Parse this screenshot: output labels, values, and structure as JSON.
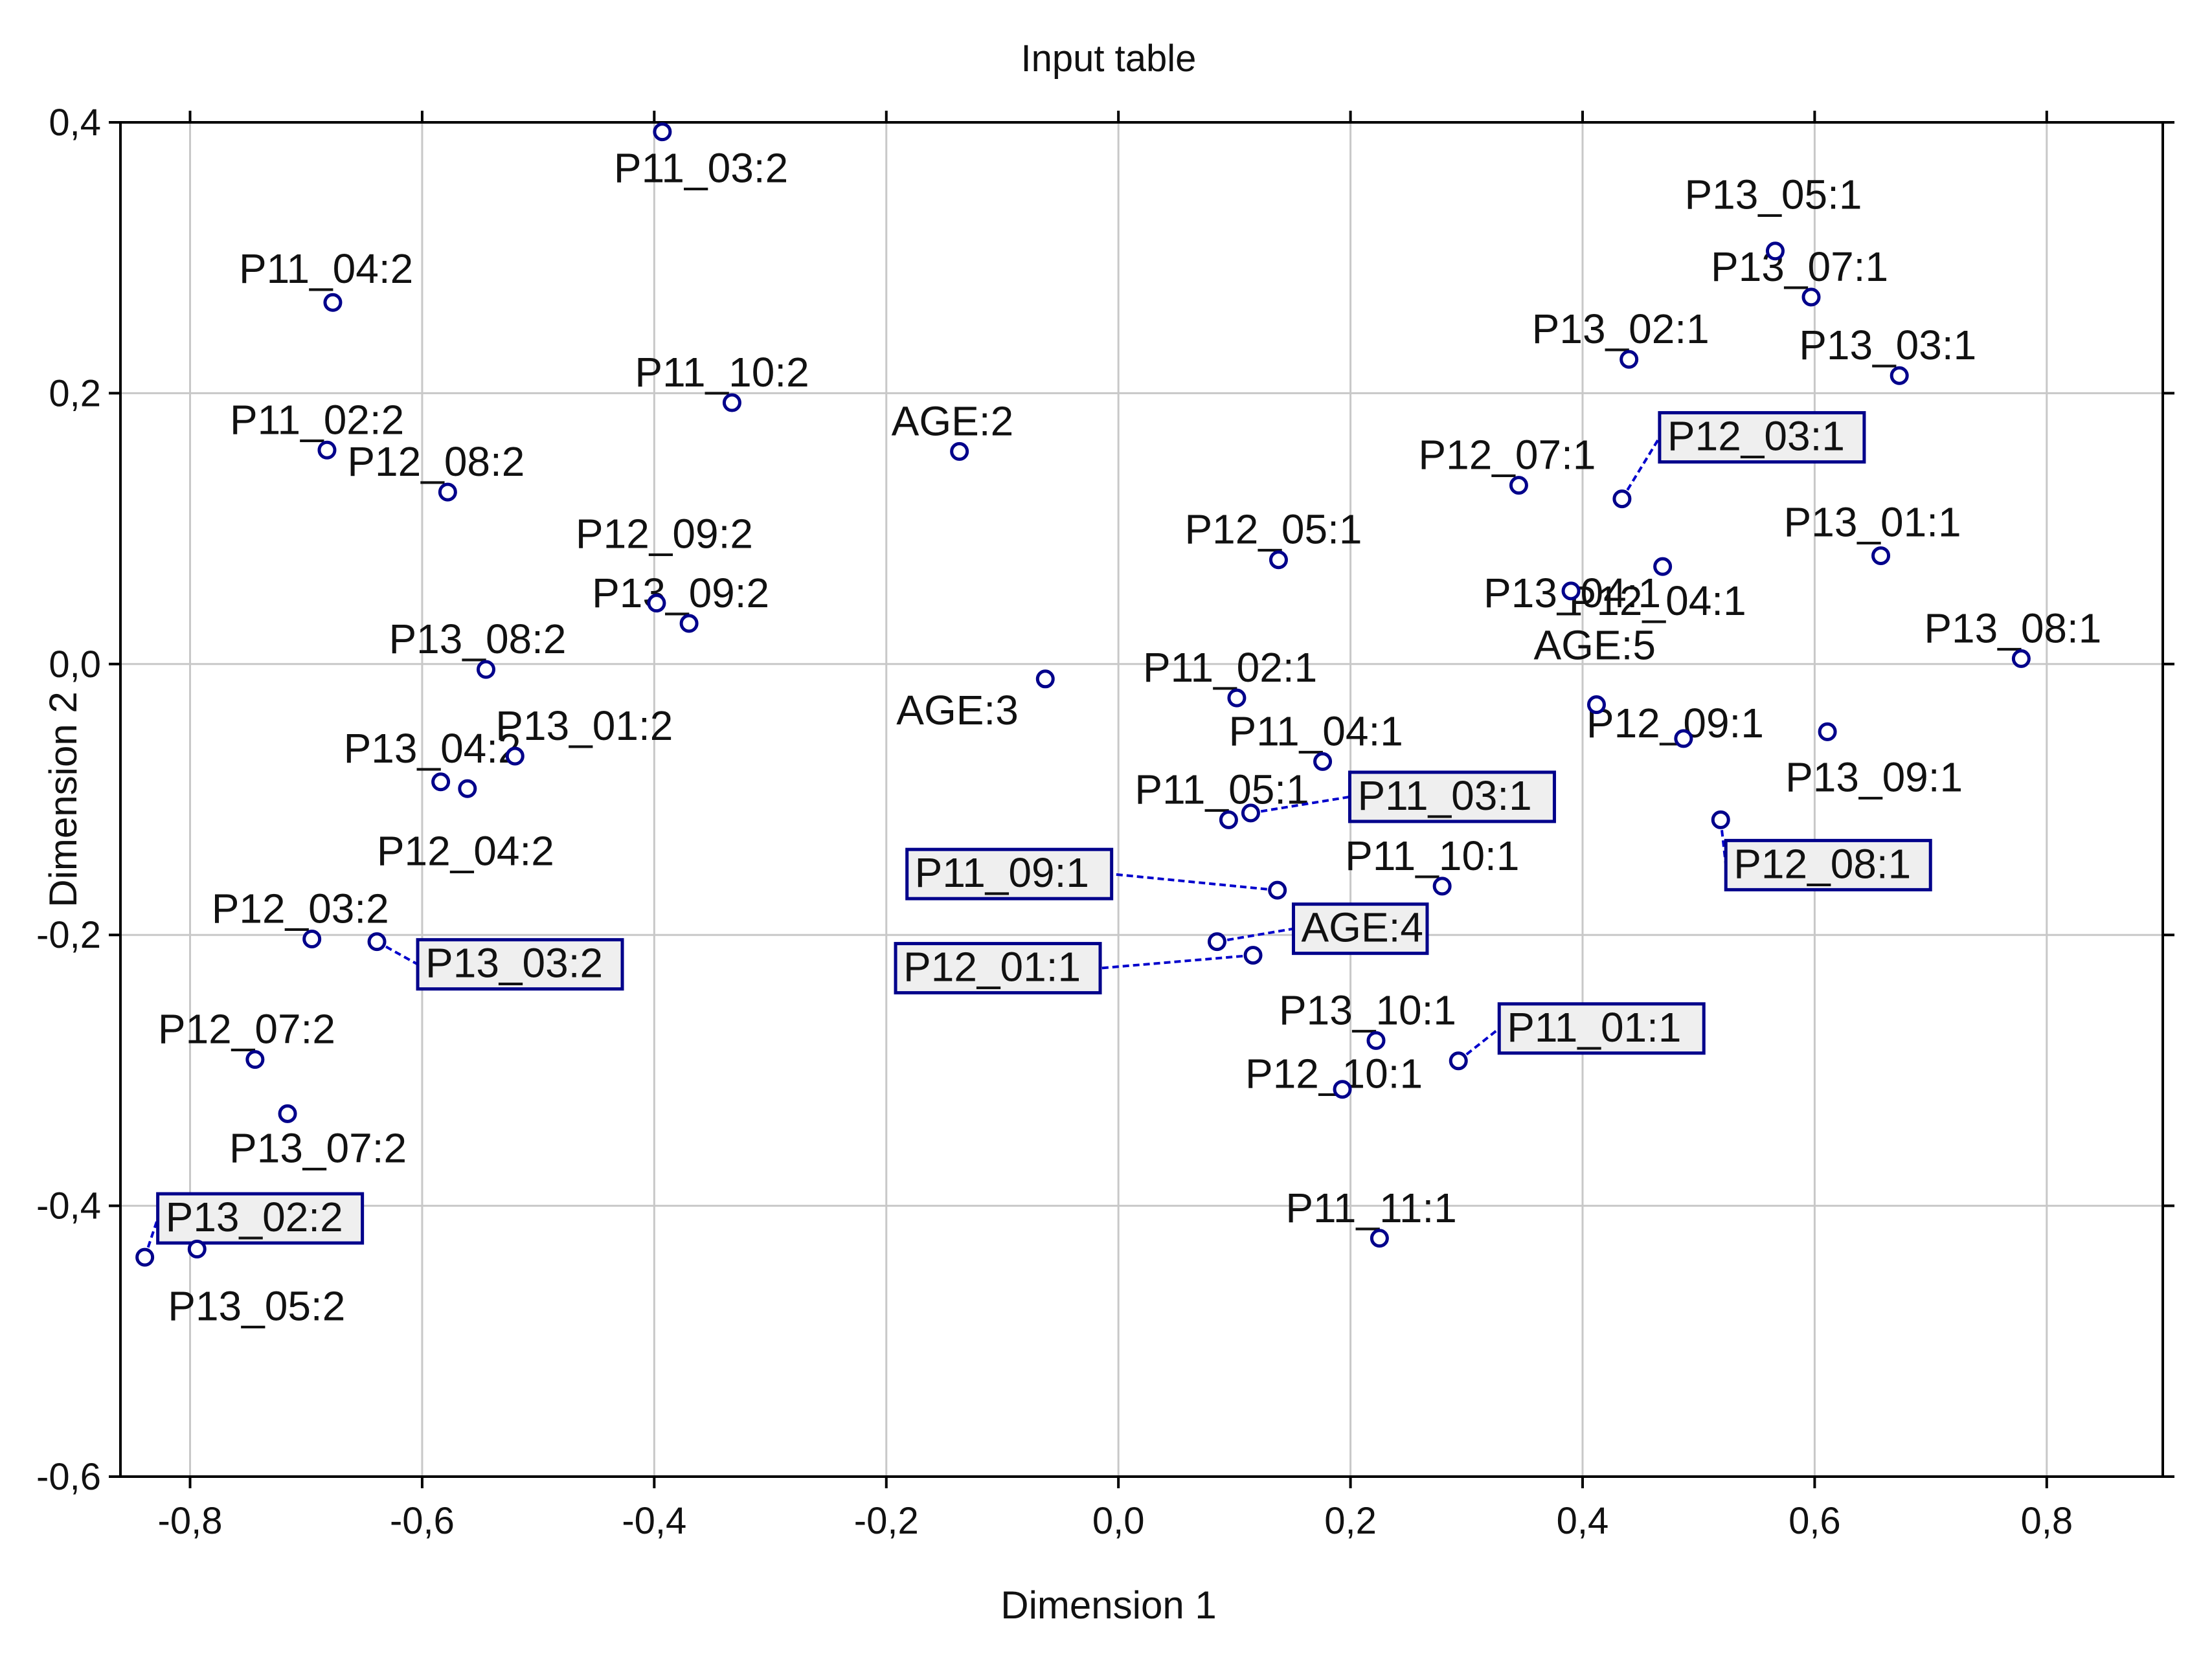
{
  "chart_data": {
    "type": "scatter",
    "title": "Input table",
    "xlabel": "Dimension 1",
    "ylabel": "Dimension 2",
    "xlim": [
      -0.86,
      0.9
    ],
    "ylim": [
      -0.6,
      0.4
    ],
    "xticks": [
      -0.8,
      -0.6,
      -0.4,
      -0.2,
      0.0,
      0.2,
      0.4,
      0.6,
      0.8
    ],
    "xtick_labels": [
      "-0,8",
      "-0,6",
      "-0,4",
      "-0,2",
      "0,0",
      "0,2",
      "0,4",
      "0,6",
      "0,8"
    ],
    "yticks": [
      -0.6,
      -0.4,
      -0.2,
      0.0,
      0.2,
      0.4
    ],
    "ytick_labels": [
      "-0,6",
      "-0,4",
      "-0,2",
      "0,0",
      "0,2",
      "0,4"
    ],
    "grid": true,
    "points": [
      {
        "label": "P11_03:2",
        "x": -0.393,
        "y": 0.393,
        "boxed": false
      },
      {
        "label": "P11_04:2",
        "x": -0.677,
        "y": 0.267,
        "boxed": false
      },
      {
        "label": "P11_10:2",
        "x": -0.333,
        "y": 0.193,
        "boxed": false
      },
      {
        "label": "P11_02:2",
        "x": -0.682,
        "y": 0.158,
        "boxed": false
      },
      {
        "label": "P12_08:2",
        "x": -0.578,
        "y": 0.127,
        "boxed": false
      },
      {
        "label": "AGE:2",
        "x": -0.137,
        "y": 0.157,
        "boxed": false
      },
      {
        "label": "P12_09:2",
        "x": -0.398,
        "y": 0.045,
        "boxed": false
      },
      {
        "label": "P13_09:2",
        "x": -0.37,
        "y": 0.03,
        "boxed": false
      },
      {
        "label": "P13_08:2",
        "x": -0.545,
        "y": -0.004,
        "boxed": false
      },
      {
        "label": "P13_01:2",
        "x": -0.52,
        "y": -0.068,
        "boxed": false
      },
      {
        "label": "P13_04:2",
        "x": -0.584,
        "y": -0.087,
        "boxed": false
      },
      {
        "label": "P12_04:2",
        "x": -0.561,
        "y": -0.092,
        "boxed": false
      },
      {
        "label": "P12_03:2",
        "x": -0.695,
        "y": -0.203,
        "boxed": false
      },
      {
        "label": "P13_03:2",
        "x": -0.639,
        "y": -0.205,
        "boxed": true
      },
      {
        "label": "P12_07:2",
        "x": -0.744,
        "y": -0.292,
        "boxed": false
      },
      {
        "label": "P13_07:2",
        "x": -0.716,
        "y": -0.332,
        "boxed": false
      },
      {
        "label": "P13_02:2",
        "x": -0.839,
        "y": -0.438,
        "boxed": true
      },
      {
        "label": "P13_05:2",
        "x": -0.794,
        "y": -0.432,
        "boxed": false
      },
      {
        "label": "AGE:3",
        "x": -0.063,
        "y": -0.011,
        "boxed": false
      },
      {
        "label": "P11_02:1",
        "x": 0.102,
        "y": -0.025,
        "boxed": false
      },
      {
        "label": "P11_04:1",
        "x": 0.176,
        "y": -0.072,
        "boxed": false
      },
      {
        "label": "P11_05:1",
        "x": 0.095,
        "y": -0.115,
        "boxed": false
      },
      {
        "label": "P11_03:1",
        "x": 0.114,
        "y": -0.11,
        "boxed": true
      },
      {
        "label": "P11_09:1",
        "x": 0.137,
        "y": -0.167,
        "boxed": true
      },
      {
        "label": "P11_10:1",
        "x": 0.279,
        "y": -0.164,
        "boxed": false
      },
      {
        "label": "AGE:4",
        "x": 0.085,
        "y": -0.205,
        "boxed": true
      },
      {
        "label": "P12_01:1",
        "x": 0.116,
        "y": -0.215,
        "boxed": true
      },
      {
        "label": "P13_10:1",
        "x": 0.222,
        "y": -0.278,
        "boxed": false
      },
      {
        "label": "P11_01:1",
        "x": 0.293,
        "y": -0.293,
        "boxed": true
      },
      {
        "label": "P12_10:1",
        "x": 0.193,
        "y": -0.314,
        "boxed": false
      },
      {
        "label": "P11_11:1",
        "x": 0.225,
        "y": -0.424,
        "boxed": false
      },
      {
        "label": "P12_05:1",
        "x": 0.138,
        "y": 0.077,
        "boxed": false
      },
      {
        "label": "P12_07:1",
        "x": 0.345,
        "y": 0.132,
        "boxed": false
      },
      {
        "label": "P13_02:1",
        "x": 0.44,
        "y": 0.225,
        "boxed": false
      },
      {
        "label": "P12_03:1",
        "x": 0.434,
        "y": 0.122,
        "boxed": true
      },
      {
        "label": "P12_04:1",
        "x": 0.469,
        "y": 0.072,
        "boxed": false
      },
      {
        "label": "P13_04:1",
        "x": 0.39,
        "y": 0.054,
        "boxed": false
      },
      {
        "label": "P13_05:1",
        "x": 0.566,
        "y": 0.305,
        "boxed": false
      },
      {
        "label": "P13_07:1",
        "x": 0.597,
        "y": 0.271,
        "boxed": false
      },
      {
        "label": "P13_03:1",
        "x": 0.673,
        "y": 0.213,
        "boxed": false
      },
      {
        "label": "P13_01:1",
        "x": 0.657,
        "y": 0.08,
        "boxed": false
      },
      {
        "label": "P13_08:1",
        "x": 0.778,
        "y": 0.004,
        "boxed": false
      },
      {
        "label": "AGE:5",
        "x": 0.412,
        "y": -0.03,
        "boxed": false
      },
      {
        "label": "P12_09:1",
        "x": 0.487,
        "y": -0.055,
        "boxed": false
      },
      {
        "label": "P13_09:1",
        "x": 0.611,
        "y": -0.05,
        "boxed": false
      },
      {
        "label": "P12_08:1",
        "x": 0.519,
        "y": -0.115,
        "boxed": true
      }
    ]
  }
}
